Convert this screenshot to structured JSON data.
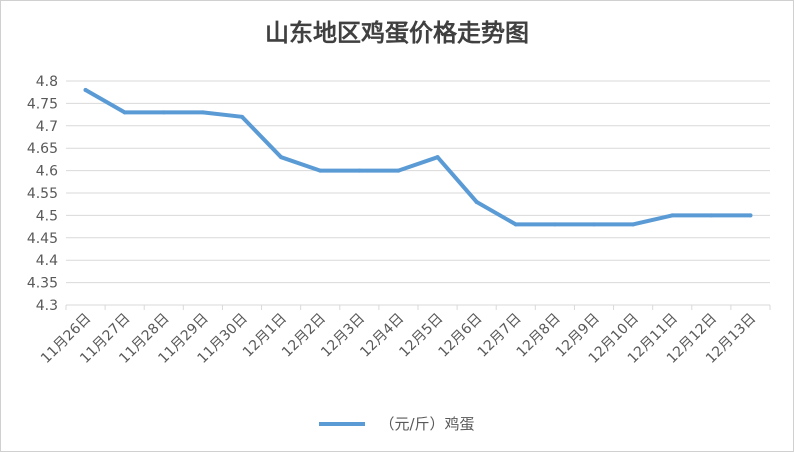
{
  "chart_data": {
    "type": "line",
    "title": "山东地区鸡蛋价格走势图",
    "categories": [
      "11月26日",
      "11月27日",
      "11月28日",
      "11月29日",
      "11月30日",
      "12月1日",
      "12月2日",
      "12月3日",
      "12月4日",
      "12月5日",
      "12月6日",
      "12月7日",
      "12月8日",
      "12月9日",
      "12月10日",
      "12月11日",
      "12月12日",
      "12月13日"
    ],
    "series": [
      {
        "name": "（元/斤）鸡蛋",
        "color": "#5b9bd5",
        "values": [
          4.78,
          4.73,
          4.73,
          4.73,
          4.72,
          4.63,
          4.6,
          4.6,
          4.6,
          4.63,
          4.53,
          4.48,
          4.48,
          4.48,
          4.48,
          4.5,
          4.5,
          4.5
        ]
      }
    ],
    "ylim": [
      4.3,
      4.8
    ],
    "yticks": [
      "4.3",
      "4.35",
      "4.4",
      "4.45",
      "4.5",
      "4.55",
      "4.6",
      "4.65",
      "4.7",
      "4.75",
      "4.8"
    ],
    "grid": true,
    "legend_position": "bottom"
  }
}
